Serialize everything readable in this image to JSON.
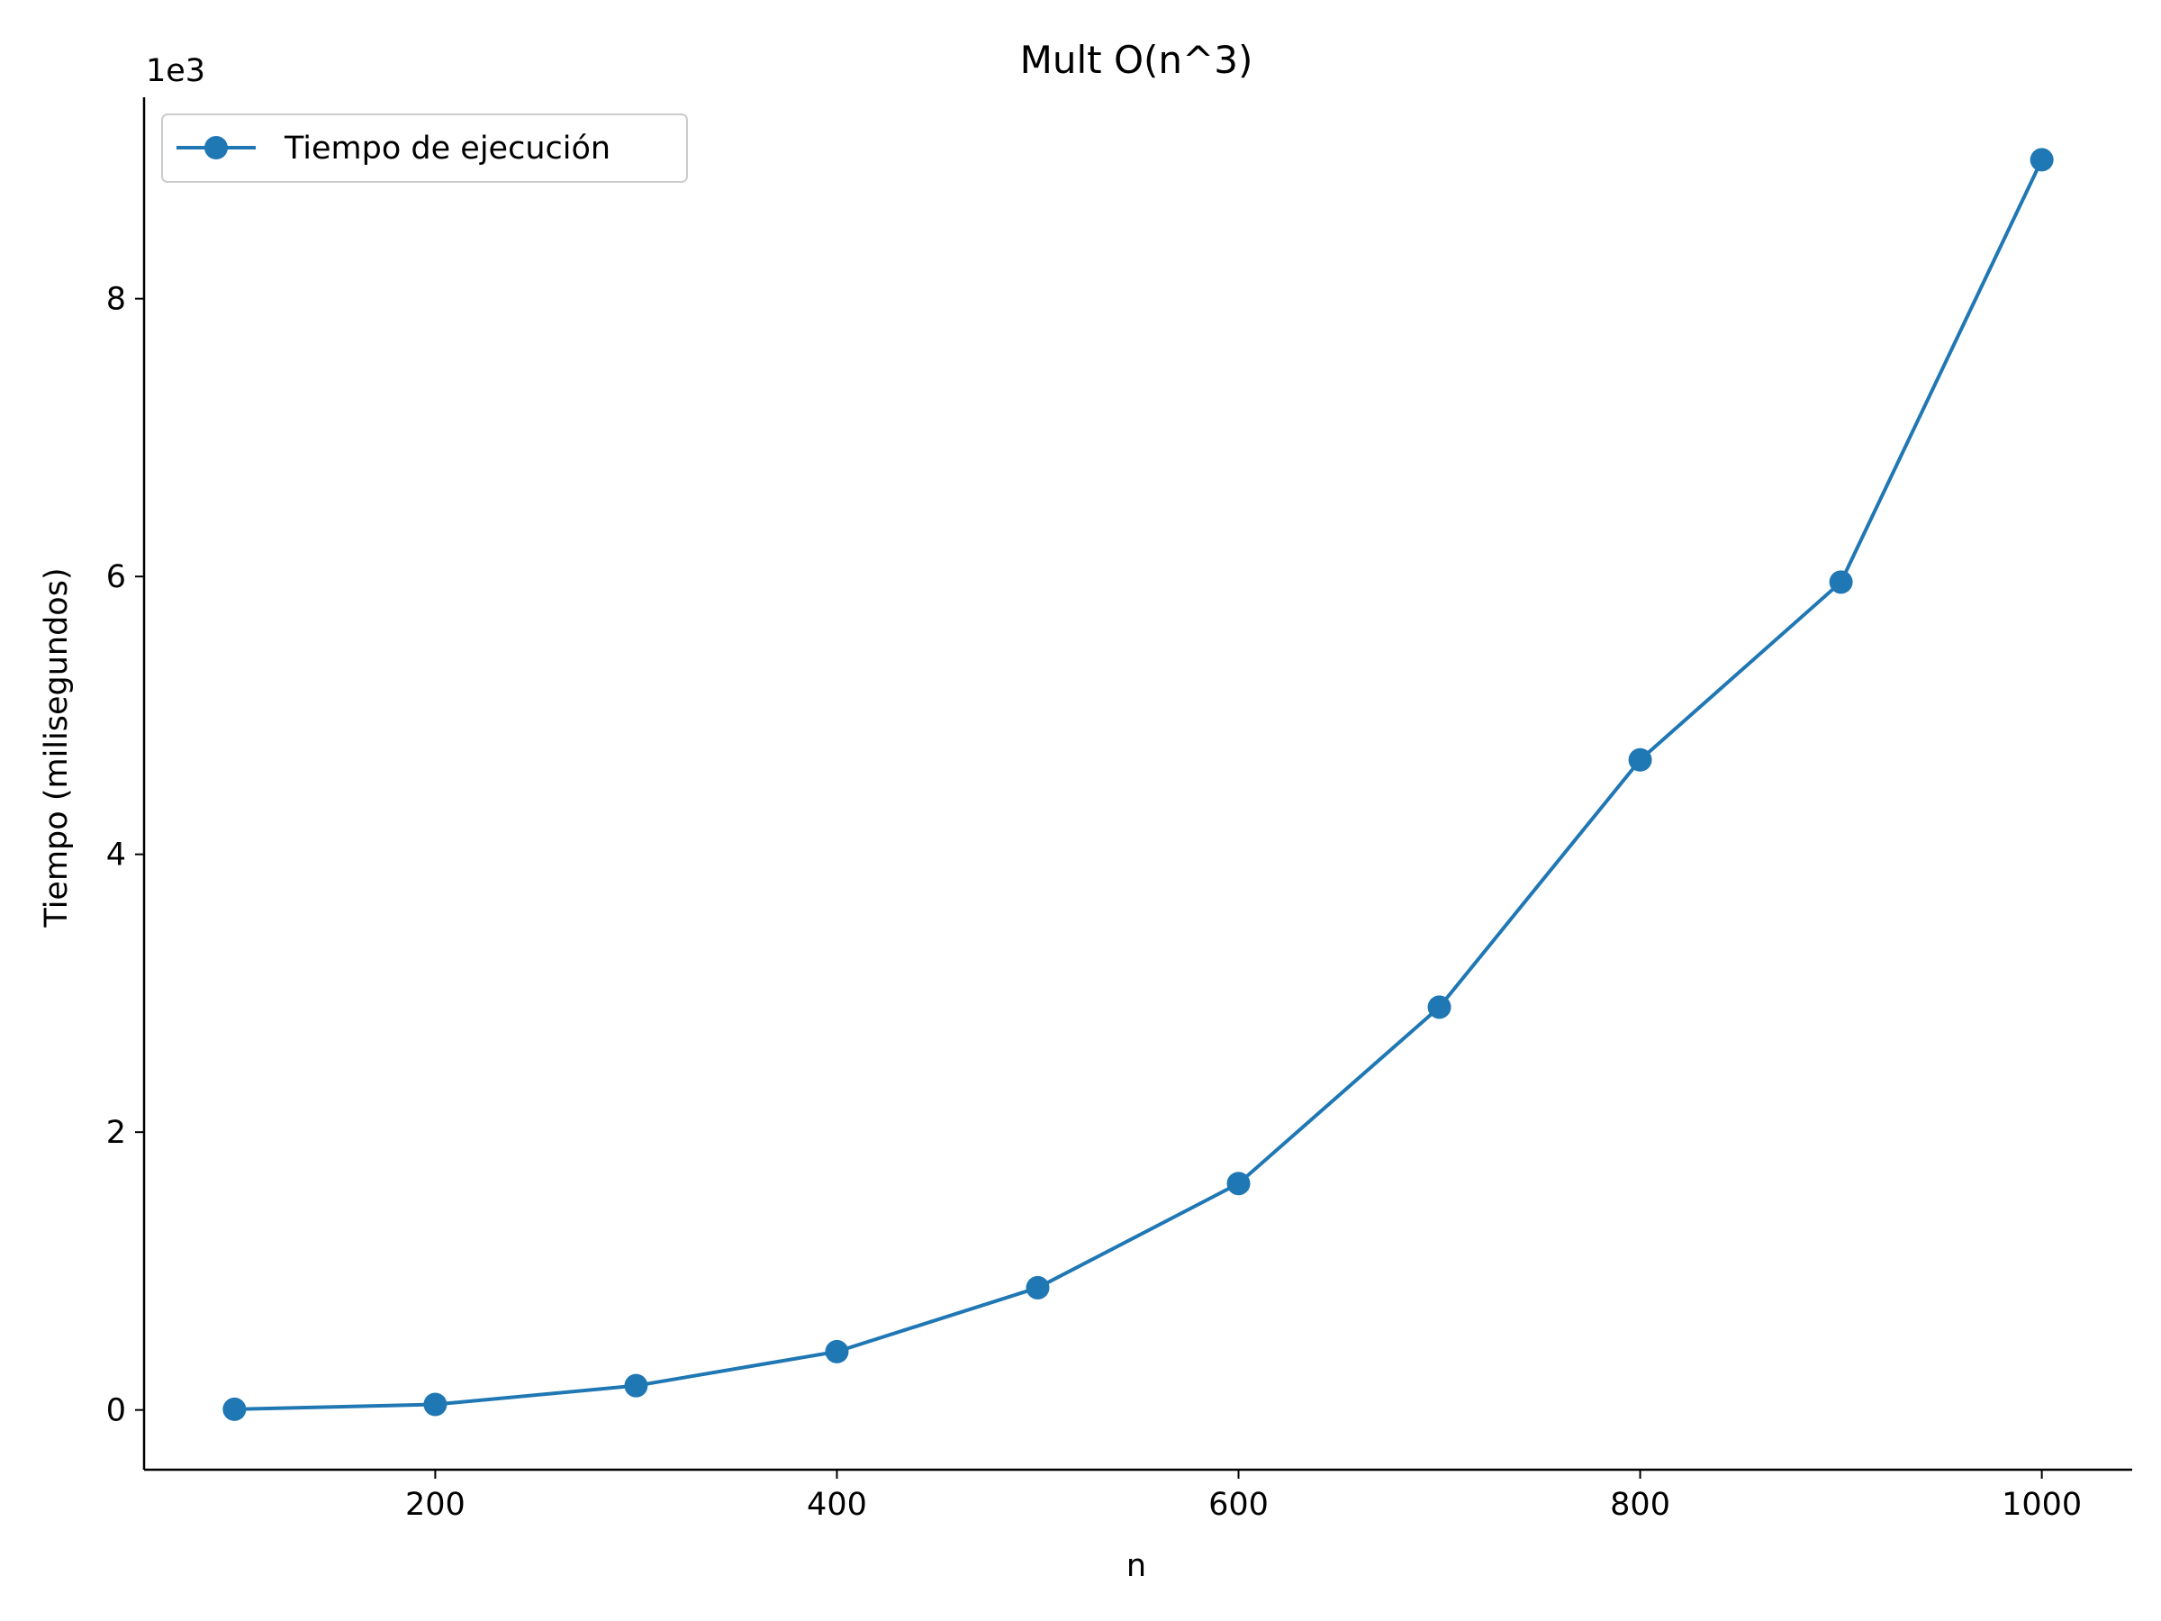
{
  "chart_data": {
    "type": "line",
    "title": "Mult O(n^3)",
    "xlabel": "n",
    "ylabel": "Tiempo (milisegundos)",
    "y_offset_label": "1e3",
    "y_scale_factor": 1000,
    "xlim": [
      55,
      1045
    ],
    "ylim": [
      -430,
      9450
    ],
    "x_ticks": [
      200,
      400,
      600,
      800,
      1000
    ],
    "y_ticks": [
      0,
      2000,
      4000,
      6000,
      8000
    ],
    "y_tick_labels": [
      "0",
      "2",
      "4",
      "6",
      "8"
    ],
    "grid": false,
    "legend_position": "upper left",
    "series": [
      {
        "name": "Tiempo de ejecución",
        "color": "#1f77b4",
        "marker": "circle",
        "x": [
          100,
          200,
          300,
          400,
          500,
          600,
          700,
          800,
          900,
          1000
        ],
        "y": [
          5,
          40,
          175,
          420,
          880,
          1630,
          2900,
          4680,
          5960,
          9000
        ]
      }
    ]
  }
}
